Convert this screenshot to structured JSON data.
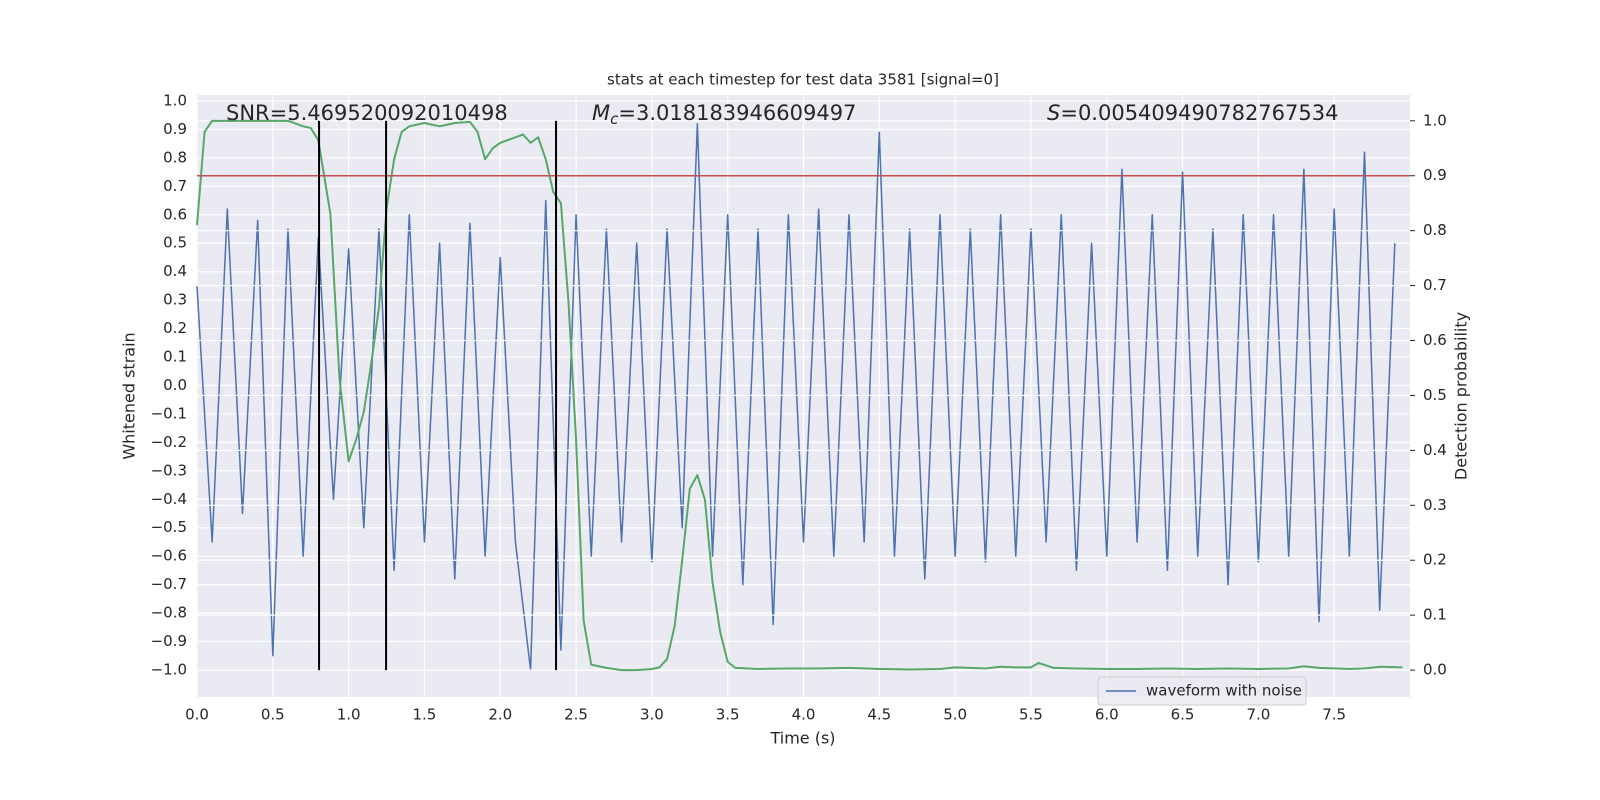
{
  "chart_data": {
    "type": "line",
    "title": "stats at each timestep for test data 3581 [signal=0]",
    "xlabel": "Time (s)",
    "ylabel": "Whitened strain",
    "y2label": "Detection probability",
    "annotations": [
      {
        "text": "SNR=5.469520092010498"
      },
      {
        "symbol": "M",
        "subscript": "c",
        "text": "=3.018183946609497"
      },
      {
        "symbol": "S",
        "text": "=0.005409490782767534"
      }
    ],
    "xlim": [
      0,
      8.0
    ],
    "ylim": [
      -1.095,
      1.021
    ],
    "y2lim": [
      -0.049,
      1.047
    ],
    "xticks": [
      {
        "value": 0,
        "label": "0.0"
      },
      {
        "value": 0.5,
        "label": "0.5"
      },
      {
        "value": 1,
        "label": "1.0"
      },
      {
        "value": 1.5,
        "label": "1.5"
      },
      {
        "value": 2,
        "label": "2.0"
      },
      {
        "value": 2.5,
        "label": "2.5"
      },
      {
        "value": 3,
        "label": "3.0"
      },
      {
        "value": 3.5,
        "label": "3.5"
      },
      {
        "value": 4,
        "label": "4.0"
      },
      {
        "value": 4.5,
        "label": "4.5"
      },
      {
        "value": 5,
        "label": "5.0"
      },
      {
        "value": 5.5,
        "label": "5.5"
      },
      {
        "value": 6,
        "label": "6.0"
      },
      {
        "value": 6.5,
        "label": "6.5"
      },
      {
        "value": 7,
        "label": "7.0"
      },
      {
        "value": 7.5,
        "label": "7.5"
      }
    ],
    "yticks": [
      {
        "value": -1,
        "label": "−1.0"
      },
      {
        "value": -0.9,
        "label": "−0.9"
      },
      {
        "value": -0.8,
        "label": "−0.8"
      },
      {
        "value": -0.7,
        "label": "−0.7"
      },
      {
        "value": -0.6,
        "label": "−0.6"
      },
      {
        "value": -0.5,
        "label": "−0.5"
      },
      {
        "value": -0.4,
        "label": "−0.4"
      },
      {
        "value": -0.3,
        "label": "−0.3"
      },
      {
        "value": -0.2,
        "label": "−0.2"
      },
      {
        "value": -0.1,
        "label": "−0.1"
      },
      {
        "value": 0,
        "label": "0.0"
      },
      {
        "value": 0.1,
        "label": "0.1"
      },
      {
        "value": 0.2,
        "label": "0.2"
      },
      {
        "value": 0.3,
        "label": "0.3"
      },
      {
        "value": 0.4,
        "label": "0.4"
      },
      {
        "value": 0.5,
        "label": "0.5"
      },
      {
        "value": 0.6,
        "label": "0.6"
      },
      {
        "value": 0.7,
        "label": "0.7"
      },
      {
        "value": 0.8,
        "label": "0.8"
      },
      {
        "value": 0.9,
        "label": "0.9"
      },
      {
        "value": 1,
        "label": "1.0"
      }
    ],
    "y2ticks": [
      {
        "value": 0,
        "label": "0.0"
      },
      {
        "value": 0.1,
        "label": "0.1"
      },
      {
        "value": 0.2,
        "label": "0.2"
      },
      {
        "value": 0.3,
        "label": "0.3"
      },
      {
        "value": 0.4,
        "label": "0.4"
      },
      {
        "value": 0.5,
        "label": "0.5"
      },
      {
        "value": 0.6,
        "label": "0.6"
      },
      {
        "value": 0.7,
        "label": "0.7"
      },
      {
        "value": 0.8,
        "label": "0.8"
      },
      {
        "value": 0.9,
        "label": "0.9"
      },
      {
        "value": 1,
        "label": "1.0"
      }
    ],
    "grid": true,
    "legend": "lower right",
    "series": [
      {
        "name": "waveform with noise",
        "color": "#4c72b0",
        "axis": "y",
        "x": [
          0.0,
          0.1,
          0.2,
          0.3,
          0.4,
          0.5,
          0.6,
          0.7,
          0.8,
          0.9,
          1.0,
          1.1,
          1.2,
          1.3,
          1.4,
          1.5,
          1.6,
          1.7,
          1.8,
          1.9,
          2.0,
          2.1,
          2.2,
          2.3,
          2.4,
          2.5,
          2.6,
          2.7,
          2.8,
          2.9,
          3.0,
          3.1,
          3.2,
          3.3,
          3.4,
          3.5,
          3.6,
          3.7,
          3.8,
          3.9,
          4.0,
          4.1,
          4.2,
          4.3,
          4.4,
          4.5,
          4.6,
          4.7,
          4.8,
          4.9,
          5.0,
          5.1,
          5.2,
          5.3,
          5.4,
          5.5,
          5.6,
          5.7,
          5.8,
          5.9,
          6.0,
          6.1,
          6.2,
          6.3,
          6.4,
          6.5,
          6.6,
          6.7,
          6.8,
          6.9,
          7.0,
          7.1,
          7.2,
          7.3,
          7.4,
          7.5,
          7.6,
          7.7,
          7.8,
          7.9
        ],
        "values": [
          0.35,
          -0.55,
          0.62,
          -0.45,
          0.58,
          -0.95,
          0.55,
          -0.6,
          0.52,
          -0.4,
          0.48,
          -0.5,
          0.55,
          -0.65,
          0.6,
          -0.55,
          0.5,
          -0.68,
          0.57,
          -0.6,
          0.45,
          -0.55,
          -1.0,
          0.65,
          -0.93,
          0.6,
          -0.6,
          0.55,
          -0.55,
          0.5,
          -0.62,
          0.55,
          -0.5,
          0.92,
          -0.6,
          0.6,
          -0.7,
          0.55,
          -0.84,
          0.6,
          -0.55,
          0.62,
          -0.6,
          0.6,
          -0.55,
          0.89,
          -0.6,
          0.55,
          -0.68,
          0.6,
          -0.6,
          0.55,
          -0.62,
          0.6,
          -0.6,
          0.55,
          -0.55,
          0.6,
          -0.65,
          0.5,
          -0.6,
          0.76,
          -0.55,
          0.6,
          -0.65,
          0.75,
          -0.6,
          0.55,
          -0.7,
          0.6,
          -0.62,
          0.6,
          -0.6,
          0.76,
          -0.83,
          0.62,
          -0.6,
          0.82,
          -0.79,
          0.5
        ]
      },
      {
        "color": "#55a868",
        "axis": "y2",
        "x": [
          0,
          0.05,
          0.1,
          0.2,
          0.3,
          0.4,
          0.5,
          0.6,
          0.7,
          0.75,
          0.8,
          0.88,
          0.94,
          1.0,
          1.05,
          1.1,
          1.15,
          1.2,
          1.25,
          1.3,
          1.35,
          1.4,
          1.5,
          1.6,
          1.7,
          1.8,
          1.85,
          1.9,
          1.95,
          2.0,
          2.05,
          2.1,
          2.15,
          2.2,
          2.25,
          2.3,
          2.35,
          2.4,
          2.45,
          2.5,
          2.55,
          2.6,
          2.7,
          2.8,
          2.9,
          3.0,
          3.05,
          3.1,
          3.15,
          3.2,
          3.25,
          3.3,
          3.35,
          3.4,
          3.45,
          3.5,
          3.55,
          3.7,
          3.9,
          4.1,
          4.3,
          4.5,
          4.7,
          4.9,
          5.0,
          5.1,
          5.2,
          5.3,
          5.4,
          5.5,
          5.55,
          5.65,
          5.8,
          6.0,
          6.2,
          6.4,
          6.6,
          6.8,
          7.0,
          7.2,
          7.3,
          7.4,
          7.6,
          7.7,
          7.8,
          7.95
        ],
        "values": [
          0.81,
          0.98,
          1.0,
          1.0,
          1.0,
          1.0,
          1.0,
          1.0,
          0.99,
          0.987,
          0.965,
          0.83,
          0.53,
          0.38,
          0.42,
          0.47,
          0.56,
          0.66,
          0.84,
          0.93,
          0.98,
          0.99,
          0.996,
          0.99,
          0.996,
          0.998,
          0.98,
          0.93,
          0.95,
          0.96,
          0.965,
          0.97,
          0.975,
          0.96,
          0.97,
          0.93,
          0.87,
          0.85,
          0.67,
          0.42,
          0.09,
          0.01,
          0.004,
          0.0,
          0.0,
          0.002,
          0.005,
          0.02,
          0.08,
          0.2,
          0.33,
          0.355,
          0.31,
          0.16,
          0.07,
          0.015,
          0.004,
          0.002,
          0.003,
          0.003,
          0.004,
          0.002,
          0.001,
          0.002,
          0.005,
          0.004,
          0.003,
          0.006,
          0.005,
          0.005,
          0.013,
          0.004,
          0.003,
          0.002,
          0.002,
          0.003,
          0.002,
          0.003,
          0.002,
          0.003,
          0.007,
          0.004,
          0.002,
          0.003,
          0.006,
          0.005
        ]
      }
    ],
    "threshold": {
      "value": 0.9,
      "color": "#c44e52",
      "axis": "y2"
    },
    "vlines": {
      "x": [
        0.805,
        1.247,
        2.368
      ],
      "ymin": 0,
      "ymax": 1,
      "color": "#000000",
      "axis": "y2"
    }
  }
}
